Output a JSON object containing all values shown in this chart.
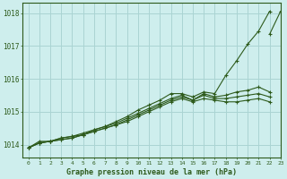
{
  "title": "Graphe pression niveau de la mer (hPa)",
  "background_color": "#ceeeed",
  "grid_color": "#aad4d3",
  "line_color": "#2d5a1b",
  "xlim": [
    -0.5,
    23
  ],
  "ylim": [
    1013.6,
    1018.3
  ],
  "yticks": [
    1014,
    1015,
    1016,
    1017,
    1018
  ],
  "xticks": [
    0,
    1,
    2,
    3,
    4,
    5,
    6,
    7,
    8,
    9,
    10,
    11,
    12,
    13,
    14,
    15,
    16,
    17,
    18,
    19,
    20,
    21,
    22,
    23
  ],
  "series": [
    [
      1013.9,
      1014.1,
      1014.1,
      1014.15,
      1014.2,
      1014.3,
      1014.45,
      1014.55,
      1014.7,
      1014.85,
      1015.05,
      1015.2,
      1015.35,
      1015.55,
      1015.55,
      1015.45,
      1015.6,
      1015.55,
      1016.1,
      1016.55,
      1017.05,
      1017.45,
      1018.05,
      null
    ],
    [
      1013.9,
      1014.05,
      1014.1,
      1014.2,
      1014.25,
      1014.35,
      1014.45,
      1014.55,
      1014.65,
      1014.8,
      1014.95,
      1015.1,
      1015.25,
      1015.4,
      1015.5,
      1015.35,
      1015.55,
      1015.45,
      1015.5,
      1015.6,
      1015.65,
      1015.75,
      1015.6,
      null
    ],
    [
      1013.9,
      1014.05,
      1014.1,
      1014.2,
      1014.25,
      1014.3,
      1014.4,
      1014.5,
      1014.6,
      1014.75,
      1014.9,
      1015.05,
      1015.2,
      1015.35,
      1015.45,
      1015.35,
      1015.5,
      1015.4,
      1015.4,
      1015.45,
      1015.5,
      1015.55,
      1015.45,
      null
    ],
    [
      1013.9,
      1014.05,
      1014.1,
      1014.15,
      1014.2,
      1014.3,
      1014.4,
      1014.5,
      1014.6,
      1014.7,
      1014.85,
      1015.0,
      1015.15,
      1015.3,
      1015.4,
      1015.3,
      1015.4,
      1015.35,
      1015.3,
      1015.3,
      1015.35,
      1015.4,
      1015.3,
      null
    ],
    [
      null,
      null,
      null,
      null,
      null,
      null,
      null,
      null,
      null,
      null,
      null,
      null,
      null,
      null,
      null,
      null,
      null,
      null,
      null,
      null,
      null,
      null,
      1017.35,
      1018.05
    ]
  ]
}
